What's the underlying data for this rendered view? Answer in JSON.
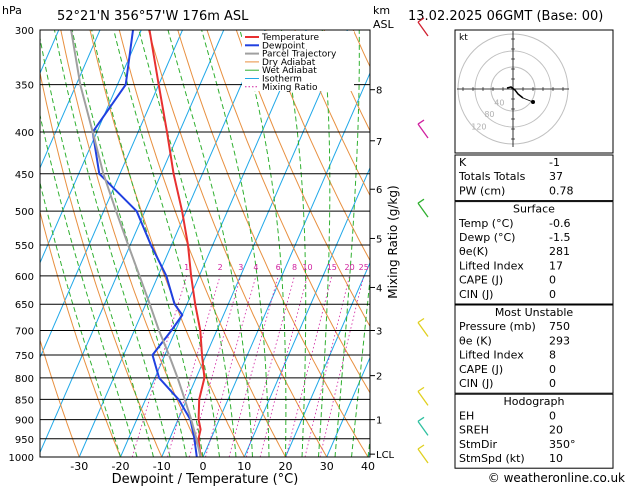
{
  "header": {
    "location": "52°21'N  356°57'W  176m  ASL",
    "datetime": "13.02.2025  06GMT  (Base: 00)",
    "hpa_label": "hPa",
    "km_label": "km",
    "asl_label": "ASL"
  },
  "footer": {
    "copyright": "© weatheronline.co.uk"
  },
  "chart_data": {
    "type": "skew-t",
    "xlabel": "Dewpoint / Temperature (°C)",
    "ylabel_right": "Mixing Ratio (g/kg)",
    "pressure_levels": [
      300,
      350,
      400,
      450,
      500,
      550,
      600,
      650,
      700,
      750,
      800,
      850,
      900,
      950,
      1000
    ],
    "temperature_ticks": [
      -30,
      -20,
      -10,
      0,
      10,
      20,
      30,
      40
    ],
    "xlim": [
      -40,
      40
    ],
    "ylim": [
      1000,
      300
    ],
    "km_ticks": [
      {
        "label": "8",
        "p": 355
      },
      {
        "label": "7",
        "p": 410
      },
      {
        "label": "6",
        "p": 470
      },
      {
        "label": "5",
        "p": 540
      },
      {
        "label": "4",
        "p": 620
      },
      {
        "label": "3",
        "p": 700
      },
      {
        "label": "2",
        "p": 795
      },
      {
        "label": "1",
        "p": 900
      },
      {
        "label": "LCL",
        "p": 992
      }
    ],
    "mixing_ratio_labels": [
      "1",
      "2",
      "3",
      "4",
      "6",
      "8",
      "10",
      "15",
      "20",
      "25"
    ],
    "mixing_ratio_values": [
      1,
      2,
      3,
      4,
      6,
      8,
      10,
      15,
      20,
      25
    ],
    "legend": [
      "Temperature",
      "Dewpoint",
      "Parcel Trajectory",
      "Dry Adiabat",
      "Wet Adiabat",
      "Isotherm",
      "Mixing Ratio"
    ],
    "colors": {
      "temperature": "#e83030",
      "dewpoint": "#2040e0",
      "parcel": "#a0a0a0",
      "dry_adiabat": "#e89040",
      "wet_adiabat": "#30b030",
      "isotherm": "#20a8e8",
      "mixing_ratio": "#d020a0"
    },
    "series": [
      {
        "name": "Temperature",
        "points": [
          [
            1000,
            -0.6
          ],
          [
            950,
            -3
          ],
          [
            925,
            -3.5
          ],
          [
            900,
            -5
          ],
          [
            850,
            -7
          ],
          [
            800,
            -8
          ],
          [
            750,
            -11
          ],
          [
            700,
            -14
          ],
          [
            650,
            -18
          ],
          [
            600,
            -22
          ],
          [
            550,
            -26
          ],
          [
            500,
            -31
          ],
          [
            450,
            -37
          ],
          [
            400,
            -43
          ],
          [
            350,
            -50
          ],
          [
            300,
            -58
          ]
        ]
      },
      {
        "name": "Dewpoint",
        "points": [
          [
            1000,
            -1.5
          ],
          [
            950,
            -4
          ],
          [
            900,
            -7
          ],
          [
            850,
            -12
          ],
          [
            800,
            -19
          ],
          [
            750,
            -23
          ],
          [
            700,
            -21
          ],
          [
            670,
            -20
          ],
          [
            650,
            -23
          ],
          [
            600,
            -28
          ],
          [
            550,
            -35
          ],
          [
            500,
            -42
          ],
          [
            450,
            -55
          ],
          [
            400,
            -61
          ],
          [
            350,
            -58
          ],
          [
            300,
            -62
          ]
        ]
      },
      {
        "name": "Parcel Trajectory",
        "points": [
          [
            1000,
            -0.6
          ],
          [
            950,
            -3.5
          ],
          [
            900,
            -6.8
          ],
          [
            850,
            -10.5
          ],
          [
            800,
            -14.5
          ],
          [
            750,
            -19
          ],
          [
            700,
            -24
          ],
          [
            650,
            -29
          ],
          [
            600,
            -34.5
          ],
          [
            550,
            -40.5
          ],
          [
            500,
            -47
          ],
          [
            450,
            -54
          ],
          [
            400,
            -61
          ],
          [
            350,
            -69
          ],
          [
            300,
            -77
          ]
        ]
      }
    ]
  },
  "hodograph": {
    "label": "kt",
    "ring_labels": [
      "40",
      "80",
      "120"
    ],
    "colors": {
      "ring": "#c0c0c0",
      "trace": "#000000"
    }
  },
  "indices": {
    "rows": [
      {
        "label": "K",
        "value": "-1"
      },
      {
        "label": "Totals Totals",
        "value": "37"
      },
      {
        "label": "PW (cm)",
        "value": "0.78"
      }
    ]
  },
  "surface": {
    "title": "Surface",
    "rows": [
      {
        "label": "Temp (°C)",
        "value": "-0.6"
      },
      {
        "label": "Dewp (°C)",
        "value": "-1.5"
      },
      {
        "label": "θe(K)",
        "value": "281"
      },
      {
        "label": "Lifted Index",
        "value": "17"
      },
      {
        "label": "CAPE (J)",
        "value": "0"
      },
      {
        "label": "CIN (J)",
        "value": "0"
      }
    ]
  },
  "most_unstable": {
    "title": "Most Unstable",
    "rows": [
      {
        "label": "Pressure (mb)",
        "value": "750"
      },
      {
        "label": "θe (K)",
        "value": "293"
      },
      {
        "label": "Lifted Index",
        "value": "8"
      },
      {
        "label": "CAPE (J)",
        "value": "0"
      },
      {
        "label": "CIN (J)",
        "value": "0"
      }
    ]
  },
  "hodograph_table": {
    "title": "Hodograph",
    "rows": [
      {
        "label": "EH",
        "value": "0"
      },
      {
        "label": "SREH",
        "value": "20"
      },
      {
        "label": "StmDir",
        "value": "350°"
      },
      {
        "label": "StmSpd (kt)",
        "value": "10"
      }
    ]
  }
}
